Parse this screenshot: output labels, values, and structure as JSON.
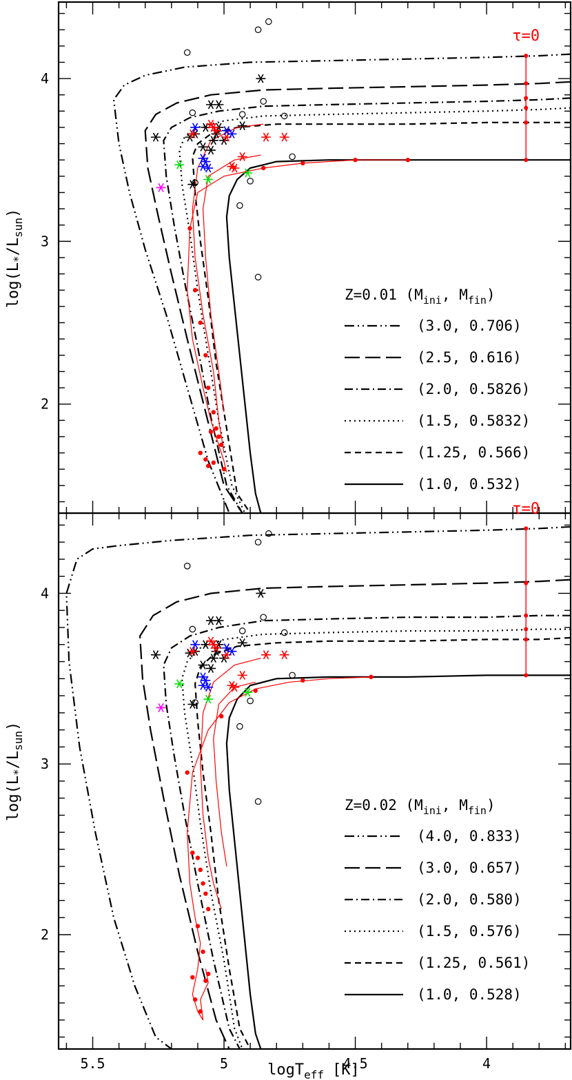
{
  "chart_data": [
    {
      "type": "line",
      "panel": "top",
      "xlabel": "logT_eff [K]",
      "ylabel": "log(L*/L_sun)",
      "xlim": [
        5.63,
        3.68
      ],
      "ylim": [
        1.33,
        4.47
      ],
      "x_ticks": [
        "5.5",
        "5",
        "4.5",
        "4"
      ],
      "y_ticks": [
        "2",
        "3",
        "4"
      ],
      "legend_title": "Z=0.01  (M_ini, M_fin)",
      "legend_position": "lower-right",
      "tau_label": "τ=0",
      "series": [
        {
          "name": "(3.0,  0.706)",
          "style": "dash-dot-dot",
          "x": [
            3.68,
            3.8,
            4.0,
            4.3,
            4.6,
            4.9,
            5.15,
            5.3,
            5.38,
            5.42,
            5.4,
            5.36,
            5.3,
            5.22,
            5.14,
            5.06,
            4.98
          ],
          "y": [
            4.15,
            4.14,
            4.13,
            4.12,
            4.11,
            4.1,
            4.07,
            4.02,
            3.96,
            3.87,
            3.6,
            3.3,
            2.95,
            2.55,
            2.1,
            1.65,
            1.33
          ]
        },
        {
          "name": "(2.5,  0.616)",
          "style": "long-dash",
          "x": [
            3.68,
            3.8,
            4.0,
            4.3,
            4.6,
            4.85,
            5.05,
            5.18,
            5.26,
            5.3,
            5.29,
            5.25,
            5.2,
            5.14,
            5.07,
            5.0,
            4.93
          ],
          "y": [
            3.98,
            3.97,
            3.96,
            3.95,
            3.94,
            3.93,
            3.9,
            3.85,
            3.78,
            3.68,
            3.45,
            3.15,
            2.8,
            2.4,
            1.95,
            1.5,
            1.33
          ]
        },
        {
          "name": "(2.0,  0.5826)",
          "style": "dash-dot",
          "x": [
            3.68,
            3.8,
            4.0,
            4.3,
            4.6,
            4.85,
            5.02,
            5.13,
            5.2,
            5.23,
            5.22,
            5.19,
            5.15,
            5.1,
            5.05,
            4.99,
            4.93
          ],
          "y": [
            3.88,
            3.87,
            3.86,
            3.85,
            3.84,
            3.83,
            3.8,
            3.76,
            3.7,
            3.62,
            3.4,
            3.1,
            2.75,
            2.35,
            1.92,
            1.5,
            1.33
          ]
        },
        {
          "name": "(1.5,  0.5832)",
          "style": "dotted",
          "x": [
            3.68,
            3.8,
            4.0,
            4.3,
            4.6,
            4.85,
            5.0,
            5.1,
            5.15,
            5.17,
            5.16,
            5.13,
            5.1,
            5.06,
            5.02,
            4.97,
            4.92
          ],
          "y": [
            3.82,
            3.81,
            3.8,
            3.79,
            3.78,
            3.77,
            3.74,
            3.7,
            3.64,
            3.56,
            3.35,
            3.05,
            2.7,
            2.3,
            1.9,
            1.5,
            1.33
          ]
        },
        {
          "name": "(1.25,  0.566)",
          "style": "dashed",
          "x": [
            3.68,
            3.8,
            4.0,
            4.3,
            4.6,
            4.8,
            4.95,
            5.05,
            5.1,
            5.12,
            5.11,
            5.09,
            5.06,
            5.03,
            4.99,
            4.95,
            4.9
          ],
          "y": [
            3.73,
            3.73,
            3.73,
            3.72,
            3.72,
            3.72,
            3.7,
            3.66,
            3.6,
            3.52,
            3.3,
            3.0,
            2.65,
            2.25,
            1.85,
            1.45,
            1.33
          ]
        },
        {
          "name": "(1.0,  0.532)",
          "style": "solid",
          "x": [
            3.68,
            3.8,
            4.0,
            4.3,
            4.6,
            4.8,
            4.9,
            4.95,
            4.98,
            4.99,
            4.98,
            4.96,
            4.94,
            4.92,
            4.9,
            4.88,
            4.86
          ],
          "y": [
            3.5,
            3.5,
            3.5,
            3.5,
            3.5,
            3.49,
            3.45,
            3.38,
            3.28,
            3.15,
            2.9,
            2.6,
            2.3,
            2.0,
            1.7,
            1.45,
            1.33
          ]
        }
      ],
      "red_tracks": [
        {
          "x": [
            4.3,
            4.5,
            4.7,
            4.85,
            5.0,
            5.1,
            5.13,
            5.14,
            5.12,
            5.08,
            5.05,
            5.02,
            5.0,
            4.99
          ],
          "y": [
            3.5,
            3.5,
            3.48,
            3.45,
            3.4,
            3.3,
            3.08,
            2.7,
            2.4,
            2.1,
            1.9,
            1.75,
            1.65,
            1.58
          ]
        },
        {
          "x": [
            4.85,
            4.95,
            5.05,
            5.1,
            5.12,
            5.11,
            5.08,
            5.04,
            5.02,
            5.0
          ],
          "y": [
            3.72,
            3.7,
            3.62,
            3.45,
            3.2,
            2.9,
            2.55,
            2.2,
            1.9,
            1.7
          ]
        },
        {
          "x": [
            4.86,
            4.96,
            5.06,
            5.08,
            5.07,
            5.05,
            5.02,
            5.0
          ],
          "y": [
            3.53,
            3.5,
            3.4,
            3.2,
            2.9,
            2.55,
            2.2,
            1.95
          ]
        }
      ],
      "red_dots": {
        "x": [
          4.3,
          4.5,
          4.7,
          4.85,
          5.13,
          5.11,
          5.09,
          5.07,
          5.06,
          5.04,
          5.03,
          5.02,
          5.01,
          5.05,
          5.06,
          5.09,
          5.07,
          5.04,
          5.0
        ],
        "y": [
          3.5,
          3.5,
          3.48,
          3.45,
          3.08,
          2.7,
          2.5,
          2.3,
          2.1,
          1.95,
          1.85,
          1.8,
          1.75,
          1.83,
          1.62,
          1.7,
          1.66,
          1.64,
          1.6
        ]
      },
      "tau_line": {
        "x": 3.85,
        "y": [
          3.5,
          3.73,
          3.82,
          3.88,
          3.97,
          4.14
        ]
      },
      "observed_open_circles": {
        "x": [
          5.14,
          4.87,
          4.83,
          5.12,
          4.93,
          4.85,
          4.77,
          4.9,
          4.74,
          4.94,
          4.87,
          5.11
        ],
        "y": [
          4.16,
          4.3,
          4.35,
          3.79,
          3.78,
          3.86,
          3.77,
          3.37,
          3.52,
          3.22,
          2.78,
          3.36
        ]
      },
      "observed_asterisks_black": {
        "x": [
          5.26,
          5.13,
          5.11,
          5.08,
          5.05,
          5.04,
          5.03,
          5.02,
          5.0,
          5.02,
          5.05,
          5.07,
          4.99,
          4.86,
          4.93,
          5.12
        ],
        "y": [
          3.64,
          3.64,
          3.66,
          3.58,
          3.56,
          3.62,
          3.66,
          3.7,
          3.62,
          3.84,
          3.84,
          3.7,
          3.68,
          4.0,
          3.71,
          3.35
        ]
      },
      "observed_asterisks_red": {
        "x": [
          5.12,
          5.05,
          5.04,
          4.99,
          4.93,
          4.84,
          4.77,
          4.97,
          4.96,
          5.03
        ],
        "y": [
          3.66,
          3.72,
          3.7,
          3.64,
          3.52,
          3.64,
          3.64,
          3.46,
          3.45,
          3.68
        ]
      },
      "observed_asterisks_blue": {
        "x": [
          5.11,
          4.99,
          4.97,
          5.08,
          5.07,
          5.08,
          5.06
        ],
        "y": [
          3.7,
          3.68,
          3.66,
          3.51,
          3.49,
          3.46,
          3.45
        ]
      },
      "observed_asterisks_green": {
        "x": [
          5.17,
          5.06,
          4.91
        ],
        "y": [
          3.47,
          3.38,
          3.42
        ]
      },
      "observed_asterisks_magenta": {
        "x": [
          5.24
        ],
        "y": [
          3.33
        ]
      }
    },
    {
      "type": "line",
      "panel": "bottom",
      "xlabel": "logT_eff [K]",
      "ylabel": "log(L*/L_sun)",
      "xlim": [
        5.63,
        3.68
      ],
      "ylim": [
        1.33,
        4.47
      ],
      "x_ticks": [
        "5.5",
        "5",
        "4.5",
        "4"
      ],
      "y_ticks": [
        "2",
        "3",
        "4"
      ],
      "legend_title": "Z=0.02  (M_ini, M_fin)",
      "legend_position": "lower-right",
      "tau_label": "τ=0",
      "series": [
        {
          "name": "(4.0,  0.833)",
          "style": "dash-dot-dot",
          "x": [
            3.68,
            3.8,
            4.0,
            4.3,
            4.6,
            4.9,
            5.2,
            5.4,
            5.5,
            5.56,
            5.6,
            5.59,
            5.55,
            5.49,
            5.42,
            5.34,
            5.26,
            5.2
          ],
          "y": [
            4.39,
            4.38,
            4.37,
            4.36,
            4.35,
            4.34,
            4.31,
            4.28,
            4.26,
            4.2,
            4.0,
            3.6,
            3.1,
            2.6,
            2.1,
            1.7,
            1.4,
            1.33
          ]
        },
        {
          "name": "(3.0,  0.657)",
          "style": "long-dash",
          "x": [
            3.68,
            3.8,
            4.0,
            4.3,
            4.6,
            4.85,
            5.05,
            5.18,
            5.27,
            5.32,
            5.31,
            5.28,
            5.23,
            5.17,
            5.1,
            5.03,
            4.98
          ],
          "y": [
            4.08,
            4.07,
            4.06,
            4.05,
            4.04,
            4.03,
            4.0,
            3.95,
            3.87,
            3.75,
            3.5,
            3.2,
            2.8,
            2.35,
            1.9,
            1.5,
            1.33
          ]
        },
        {
          "name": "(2.0,  0.580)",
          "style": "dash-dot",
          "x": [
            3.68,
            3.8,
            4.0,
            4.3,
            4.6,
            4.85,
            5.02,
            5.13,
            5.2,
            5.23,
            5.22,
            5.19,
            5.15,
            5.1,
            5.04,
            4.98,
            4.94
          ],
          "y": [
            3.87,
            3.87,
            3.86,
            3.86,
            3.85,
            3.84,
            3.8,
            3.75,
            3.68,
            3.58,
            3.35,
            3.05,
            2.7,
            2.3,
            1.85,
            1.45,
            1.33
          ]
        },
        {
          "name": "(1.5,  0.576)",
          "style": "dotted",
          "x": [
            3.68,
            3.8,
            4.0,
            4.3,
            4.6,
            4.85,
            5.0,
            5.09,
            5.14,
            5.16,
            5.15,
            5.12,
            5.09,
            5.05,
            5.0,
            4.96,
            4.93
          ],
          "y": [
            3.79,
            3.79,
            3.78,
            3.78,
            3.77,
            3.76,
            3.73,
            3.68,
            3.6,
            3.5,
            3.3,
            3.0,
            2.65,
            2.25,
            1.85,
            1.45,
            1.33
          ]
        },
        {
          "name": "(1.25,  0.561)",
          "style": "dashed",
          "x": [
            3.68,
            3.8,
            4.0,
            4.3,
            4.6,
            4.8,
            4.95,
            5.04,
            5.09,
            5.11,
            5.1,
            5.08,
            5.05,
            5.02,
            4.98,
            4.94,
            4.9
          ],
          "y": [
            3.74,
            3.73,
            3.73,
            3.72,
            3.72,
            3.71,
            3.69,
            3.64,
            3.57,
            3.47,
            3.25,
            2.95,
            2.6,
            2.2,
            1.8,
            1.45,
            1.33
          ]
        },
        {
          "name": "(1.0,  0.528)",
          "style": "solid",
          "x": [
            3.68,
            3.8,
            4.0,
            4.3,
            4.6,
            4.8,
            4.9,
            4.95,
            4.98,
            4.99,
            4.98,
            4.96,
            4.94,
            4.92,
            4.9,
            4.88,
            4.86
          ],
          "y": [
            3.52,
            3.52,
            3.52,
            3.51,
            3.51,
            3.5,
            3.46,
            3.38,
            3.27,
            3.12,
            2.85,
            2.55,
            2.25,
            1.95,
            1.65,
            1.42,
            1.33
          ]
        }
      ],
      "red_tracks": [
        {
          "x": [
            4.44,
            4.6,
            4.75,
            4.88,
            4.98,
            5.06,
            5.12,
            5.14,
            5.13,
            5.11,
            5.09,
            5.1,
            5.12,
            5.1,
            5.08,
            5.09,
            5.06,
            5.07
          ],
          "y": [
            3.51,
            3.5,
            3.48,
            3.44,
            3.36,
            3.2,
            2.95,
            2.6,
            2.3,
            2.1,
            1.95,
            1.8,
            1.65,
            1.55,
            1.5,
            1.62,
            1.72,
            1.8
          ]
        },
        {
          "x": [
            4.86,
            4.96,
            5.04,
            5.08,
            5.09,
            5.08,
            5.06,
            5.04,
            5.02,
            5.01
          ],
          "y": [
            3.62,
            3.58,
            3.48,
            3.3,
            3.0,
            2.7,
            2.45,
            2.3,
            2.2,
            2.15
          ]
        },
        {
          "x": [
            4.88,
            4.96,
            5.02,
            5.04,
            5.03,
            5.01,
            4.99
          ],
          "y": [
            3.48,
            3.45,
            3.35,
            3.15,
            2.9,
            2.6,
            2.4
          ]
        }
      ],
      "red_dots": {
        "x": [
          4.44,
          4.7,
          4.88,
          5.01,
          5.14,
          5.12,
          5.1,
          5.09,
          5.08,
          5.07,
          5.06,
          5.1,
          5.12,
          5.11,
          5.09,
          5.07,
          5.06,
          5.08
        ],
        "y": [
          3.51,
          3.49,
          3.43,
          3.28,
          2.95,
          2.48,
          2.45,
          2.38,
          2.3,
          2.24,
          2.15,
          2.05,
          1.75,
          1.62,
          1.55,
          1.73,
          1.77,
          1.9
        ]
      },
      "tau_line": {
        "x": 3.85,
        "y": [
          3.52,
          3.73,
          3.79,
          3.87,
          4.06,
          4.38
        ]
      },
      "observed_open_circles": {
        "x": [
          5.14,
          4.87,
          4.83,
          5.12,
          4.93,
          4.85,
          4.77,
          4.9,
          4.74,
          4.94,
          4.87,
          5.11
        ],
        "y": [
          4.16,
          4.3,
          4.35,
          3.79,
          3.78,
          3.86,
          3.77,
          3.37,
          3.52,
          3.22,
          2.78,
          3.36
        ]
      },
      "observed_asterisks_black": {
        "x": [
          5.26,
          5.13,
          5.11,
          5.08,
          5.05,
          5.04,
          5.03,
          5.02,
          5.0,
          5.02,
          5.05,
          5.07,
          4.99,
          4.86,
          4.93,
          5.12
        ],
        "y": [
          3.64,
          3.65,
          3.66,
          3.58,
          3.56,
          3.62,
          3.66,
          3.7,
          3.62,
          3.84,
          3.84,
          3.7,
          3.68,
          4.0,
          3.71,
          3.35
        ]
      },
      "observed_asterisks_red": {
        "x": [
          5.12,
          5.05,
          5.04,
          4.99,
          4.93,
          4.84,
          4.77,
          4.97,
          4.96,
          5.03
        ],
        "y": [
          3.66,
          3.72,
          3.7,
          3.64,
          3.52,
          3.64,
          3.64,
          3.46,
          3.45,
          3.68
        ]
      },
      "observed_asterisks_blue": {
        "x": [
          5.11,
          4.99,
          4.97,
          5.08,
          5.07,
          5.08,
          5.06
        ],
        "y": [
          3.7,
          3.68,
          3.66,
          3.51,
          3.49,
          3.46,
          3.45
        ]
      },
      "observed_asterisks_green": {
        "x": [
          5.17,
          5.06,
          4.91
        ],
        "y": [
          3.47,
          3.38,
          3.42
        ]
      },
      "observed_asterisks_magenta": {
        "x": [
          5.24
        ],
        "y": [
          3.33
        ]
      }
    }
  ],
  "colors": {
    "axes": "#000000",
    "red_track": "#ff0000",
    "blue_star": "#0000ff",
    "green_star": "#00e000",
    "magenta_star": "#ff00ff"
  },
  "figure": {
    "xlabel_text": "logT",
    "xlabel_sub": "eff",
    "xlabel_unit": "[K]",
    "ylabel_text": "log(L",
    "ylabel_star": "*",
    "ylabel_mid": "/L",
    "ylabel_sub": "sun",
    "ylabel_close": ")",
    "legend_label_mini": "M",
    "legend_sub_ini": "ini",
    "legend_label_mfin": "M",
    "legend_sub_fin": "fin"
  }
}
